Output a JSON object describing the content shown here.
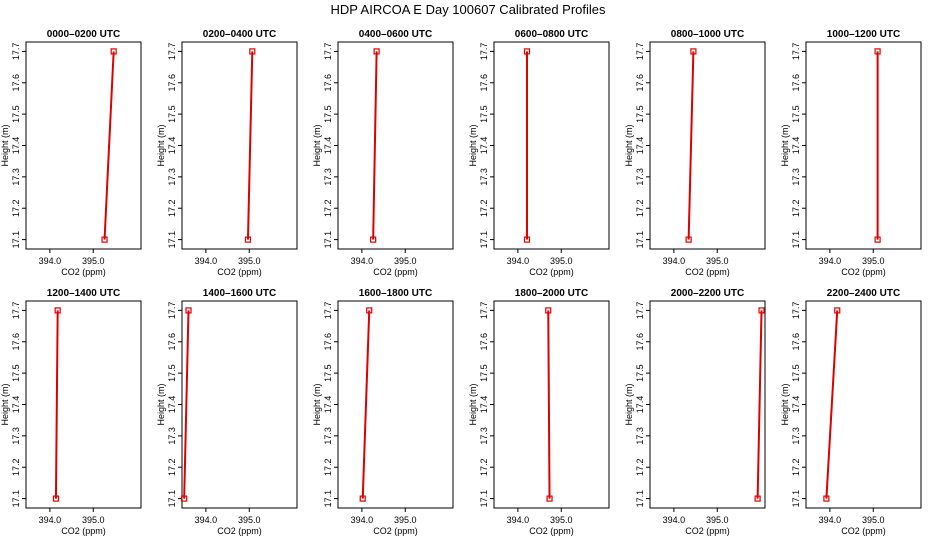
{
  "title": "HDP AIRCOA E  Day 100607  Calibrated Profiles",
  "chart_data": [
    {
      "type": "line",
      "title": "0000–0200 UTC",
      "xlabel": "CO2 (ppm)",
      "ylabel": "Height (m)",
      "xticks": [
        394.0,
        395.0
      ],
      "yticks": [
        17.1,
        17.2,
        17.3,
        17.4,
        17.5,
        17.6,
        17.7
      ],
      "xlim": [
        393.45,
        396.1
      ],
      "ylim": [
        17.07,
        17.73
      ],
      "x": [
        395.26,
        395.47
      ],
      "y": [
        17.1,
        17.7
      ]
    },
    {
      "type": "line",
      "title": "0200–0400 UTC",
      "xlabel": "CO2 (ppm)",
      "ylabel": "Height (m)",
      "xticks": [
        394.0,
        395.0
      ],
      "yticks": [
        17.1,
        17.2,
        17.3,
        17.4,
        17.5,
        17.6,
        17.7
      ],
      "xlim": [
        393.45,
        396.1
      ],
      "ylim": [
        17.07,
        17.73
      ],
      "x": [
        394.97,
        395.07
      ],
      "y": [
        17.1,
        17.7
      ]
    },
    {
      "type": "line",
      "title": "0400–0600 UTC",
      "xlabel": "CO2 (ppm)",
      "ylabel": "Height (m)",
      "xticks": [
        394.0,
        395.0
      ],
      "yticks": [
        17.1,
        17.2,
        17.3,
        17.4,
        17.5,
        17.6,
        17.7
      ],
      "xlim": [
        393.45,
        396.1
      ],
      "ylim": [
        17.07,
        17.73
      ],
      "x": [
        394.26,
        394.34
      ],
      "y": [
        17.1,
        17.7
      ]
    },
    {
      "type": "line",
      "title": "0600–0800 UTC",
      "xlabel": "CO2 (ppm)",
      "ylabel": "Height (m)",
      "xticks": [
        394.0,
        395.0
      ],
      "yticks": [
        17.1,
        17.2,
        17.3,
        17.4,
        17.5,
        17.6,
        17.7
      ],
      "xlim": [
        393.45,
        396.1
      ],
      "ylim": [
        17.07,
        17.73
      ],
      "x": [
        394.21,
        394.21
      ],
      "y": [
        17.1,
        17.7
      ]
    },
    {
      "type": "line",
      "title": "0800–1000 UTC",
      "xlabel": "CO2 (ppm)",
      "ylabel": "Height (m)",
      "xticks": [
        394.0,
        395.0
      ],
      "yticks": [
        17.1,
        17.2,
        17.3,
        17.4,
        17.5,
        17.6,
        17.7
      ],
      "xlim": [
        393.45,
        396.1
      ],
      "ylim": [
        17.07,
        17.73
      ],
      "x": [
        394.34,
        394.45
      ],
      "y": [
        17.1,
        17.7
      ]
    },
    {
      "type": "line",
      "title": "1000–1200 UTC",
      "xlabel": "CO2 (ppm)",
      "ylabel": "Height (m)",
      "xticks": [
        394.0,
        395.0
      ],
      "yticks": [
        17.1,
        17.2,
        17.3,
        17.4,
        17.5,
        17.6,
        17.7
      ],
      "xlim": [
        393.45,
        396.1
      ],
      "ylim": [
        17.07,
        17.73
      ],
      "x": [
        395.1,
        395.1
      ],
      "y": [
        17.1,
        17.7
      ]
    },
    {
      "type": "line",
      "title": "1200–1400 UTC",
      "xlabel": "CO2 (ppm)",
      "ylabel": "Height (m)",
      "xticks": [
        394.0,
        395.0
      ],
      "yticks": [
        17.1,
        17.2,
        17.3,
        17.4,
        17.5,
        17.6,
        17.7
      ],
      "xlim": [
        393.45,
        396.1
      ],
      "ylim": [
        17.07,
        17.73
      ],
      "x": [
        394.14,
        394.18
      ],
      "y": [
        17.1,
        17.7
      ]
    },
    {
      "type": "line",
      "title": "1400–1600 UTC",
      "xlabel": "CO2 (ppm)",
      "ylabel": "Height (m)",
      "xticks": [
        394.0,
        395.0
      ],
      "yticks": [
        17.1,
        17.2,
        17.3,
        17.4,
        17.5,
        17.6,
        17.7
      ],
      "xlim": [
        393.45,
        396.1
      ],
      "ylim": [
        17.07,
        17.73
      ],
      "x": [
        393.5,
        393.6
      ],
      "y": [
        17.1,
        17.7
      ]
    },
    {
      "type": "line",
      "title": "1600–1800 UTC",
      "xlabel": "CO2 (ppm)",
      "ylabel": "Height (m)",
      "xticks": [
        394.0,
        395.0
      ],
      "yticks": [
        17.1,
        17.2,
        17.3,
        17.4,
        17.5,
        17.6,
        17.7
      ],
      "xlim": [
        393.45,
        396.1
      ],
      "ylim": [
        17.07,
        17.73
      ],
      "x": [
        394.02,
        394.17
      ],
      "y": [
        17.1,
        17.7
      ]
    },
    {
      "type": "line",
      "title": "1800–2000 UTC",
      "xlabel": "CO2 (ppm)",
      "ylabel": "Height (m)",
      "xticks": [
        394.0,
        395.0
      ],
      "yticks": [
        17.1,
        17.2,
        17.3,
        17.4,
        17.5,
        17.6,
        17.7
      ],
      "xlim": [
        393.45,
        396.1
      ],
      "ylim": [
        17.07,
        17.73
      ],
      "x": [
        394.73,
        394.7
      ],
      "y": [
        17.1,
        17.7
      ]
    },
    {
      "type": "line",
      "title": "2000–2200 UTC",
      "xlabel": "CO2 (ppm)",
      "ylabel": "Height (m)",
      "xticks": [
        394.0,
        395.0
      ],
      "yticks": [
        17.1,
        17.2,
        17.3,
        17.4,
        17.5,
        17.6,
        17.7
      ],
      "xlim": [
        393.45,
        396.1
      ],
      "ylim": [
        17.07,
        17.73
      ],
      "x": [
        395.93,
        396.02
      ],
      "y": [
        17.1,
        17.7
      ]
    },
    {
      "type": "line",
      "title": "2200–2400 UTC",
      "xlabel": "CO2 (ppm)",
      "ylabel": "Height (m)",
      "xticks": [
        394.0,
        395.0
      ],
      "yticks": [
        17.1,
        17.2,
        17.3,
        17.4,
        17.5,
        17.6,
        17.7
      ],
      "xlim": [
        393.45,
        396.1
      ],
      "ylim": [
        17.07,
        17.73
      ],
      "x": [
        393.92,
        394.17
      ],
      "y": [
        17.1,
        17.7
      ]
    }
  ]
}
